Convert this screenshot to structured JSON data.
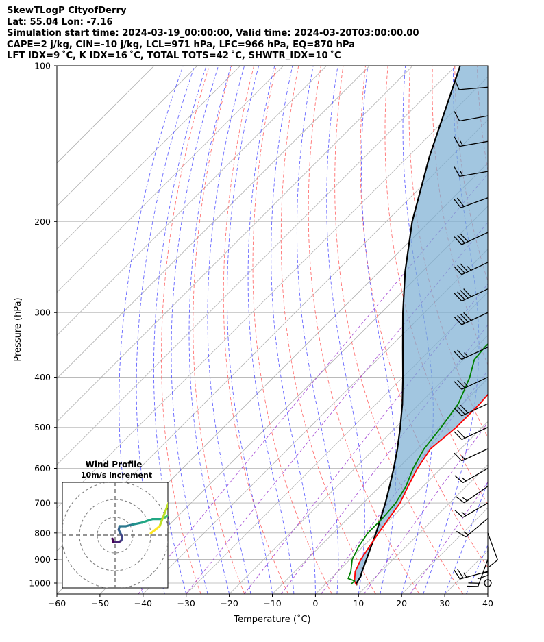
{
  "header": {
    "line1": "SkewTLogP CityofDerry",
    "line2": "Lat: 55.04   Lon: -7.16",
    "line3": "Simulation start time: 2024-03-19_00:00:00, Valid time: 2024-03-20T03:00:00.00",
    "line4": "CAPE=2 j/kg, CIN=-10 j/kg, LCL=971 hPa, LFC=966 hPa, EQ=870 hPa",
    "line5": "LFT IDX=9 ˚C, K IDX=16 ˚C, TOTAL TOTS=42 ˚C, SHWTR_IDX=10 ˚C"
  },
  "chart_data": {
    "type": "skewt",
    "xlabel": "Temperature (˚C)",
    "ylabel": "Pressure (hPa)",
    "xlim": [
      -60,
      40
    ],
    "ylim": [
      1050,
      100
    ],
    "y_scale": "log",
    "x_ticks": [
      -60,
      -50,
      -40,
      -30,
      -20,
      -10,
      0,
      10,
      20,
      30,
      40
    ],
    "x_tick_labels": [
      "−60",
      "−50",
      "−40",
      "−30",
      "−20",
      "−10",
      "0",
      "10",
      "20",
      "30",
      "40"
    ],
    "y_ticks": [
      1000,
      900,
      800,
      700,
      600,
      500,
      400,
      300,
      200,
      100
    ],
    "y_tick_labels": [
      "1000",
      "900",
      "800",
      "700",
      "600",
      "500",
      "400",
      "300",
      "200",
      "100"
    ],
    "grid": true,
    "temperature": {
      "color": "#ff0000",
      "p": [
        1010,
        990,
        950,
        900,
        850,
        800,
        750,
        700,
        650,
        600,
        550,
        500,
        450,
        420,
        400,
        370,
        350,
        330,
        300,
        270,
        250,
        230,
        220,
        210,
        200,
        180,
        170,
        160,
        150,
        140,
        130,
        120,
        110,
        100
      ],
      "t": [
        7.5,
        6,
        4,
        2.5,
        1.5,
        0.5,
        -0.5,
        -1.5,
        -3.5,
        -5.5,
        -7,
        -6,
        -6,
        -6.5,
        -8,
        -9.5,
        -10.5,
        -11.5,
        -12.5,
        -13,
        -13.5,
        -13.5,
        -13,
        -12,
        -10.5,
        -9,
        -7.5,
        -5.5,
        -3.5,
        -1,
        1.5,
        3.5,
        6,
        7.5
      ]
    },
    "dewpoint": {
      "color": "#008000",
      "p": [
        1005,
        990,
        980,
        950,
        900,
        850,
        800,
        750,
        700,
        650,
        600,
        550,
        500,
        450,
        400,
        370,
        350,
        330,
        300,
        270,
        250,
        230,
        210,
        200,
        180,
        170,
        160,
        150,
        140,
        130,
        120,
        110,
        100
      ],
      "t": [
        6,
        6,
        4,
        3,
        0.5,
        -1,
        -2,
        -2,
        -2.5,
        -4,
        -6.5,
        -8.5,
        -9.5,
        -11,
        -14.5,
        -17.5,
        -18,
        -18,
        -17.5,
        -18.5,
        -20.5,
        -23,
        -26.5,
        -28,
        -28.5,
        -28,
        -26.5,
        -25,
        -22.5,
        -20,
        -16.5,
        -14,
        -11
      ]
    },
    "parcel": {
      "color": "#000000",
      "p": [
        1010,
        1000,
        971,
        950,
        900,
        850,
        800,
        750,
        700,
        650,
        600,
        550,
        500,
        450,
        400,
        350,
        300,
        250,
        200,
        150,
        100
      ],
      "t": [
        7.5,
        7.0,
        6.4,
        5.6,
        3.8,
        1.9,
        -0.1,
        -2.4,
        -4.9,
        -7.8,
        -11.0,
        -14.7,
        -19.0,
        -24.0,
        -30.0,
        -37.0,
        -45.0,
        -54.0,
        -64.0,
        -75.0,
        -89.0
      ]
    },
    "wind_barbs": [
      {
        "p": 1000,
        "speed_kt": 0,
        "dir": 0
      },
      {
        "p": 950,
        "speed_kt": 25,
        "dir": 255
      },
      {
        "p": 900,
        "speed_kt": 20,
        "dir": 200
      },
      {
        "p": 850,
        "speed_kt": 15,
        "dir": 180
      },
      {
        "p": 800,
        "speed_kt": 10,
        "dir": 160
      },
      {
        "p": 750,
        "speed_kt": 15,
        "dir": 230
      },
      {
        "p": 700,
        "speed_kt": 15,
        "dir": 240
      },
      {
        "p": 650,
        "speed_kt": 15,
        "dir": 235
      },
      {
        "p": 600,
        "speed_kt": 15,
        "dir": 240
      },
      {
        "p": 550,
        "speed_kt": 15,
        "dir": 245
      },
      {
        "p": 500,
        "speed_kt": 20,
        "dir": 245
      },
      {
        "p": 450,
        "speed_kt": 30,
        "dir": 245
      },
      {
        "p": 400,
        "speed_kt": 25,
        "dir": 245
      },
      {
        "p": 350,
        "speed_kt": 25,
        "dir": 245
      },
      {
        "p": 300,
        "speed_kt": 40,
        "dir": 245
      },
      {
        "p": 270,
        "speed_kt": 40,
        "dir": 245
      },
      {
        "p": 240,
        "speed_kt": 35,
        "dir": 245
      },
      {
        "p": 210,
        "speed_kt": 30,
        "dir": 245
      },
      {
        "p": 180,
        "speed_kt": 20,
        "dir": 250
      },
      {
        "p": 160,
        "speed_kt": 15,
        "dir": 260
      },
      {
        "p": 140,
        "speed_kt": 15,
        "dir": 260
      },
      {
        "p": 125,
        "speed_kt": 10,
        "dir": 260
      },
      {
        "p": 110,
        "speed_kt": 10,
        "dir": 265
      }
    ],
    "hodograph": {
      "title": "Wind Profile",
      "subtitle": "10m/s increment",
      "rings_ms": [
        10,
        20,
        30
      ],
      "u": [
        -1.5,
        -1,
        0,
        2,
        3.5,
        4,
        3,
        2,
        2.5,
        6,
        10,
        15,
        21,
        26,
        30,
        32,
        34,
        34,
        30,
        25,
        20
      ],
      "v": [
        -2,
        -4,
        -4,
        -4,
        -3,
        -1,
        1,
        3,
        5,
        5,
        6,
        7,
        9,
        9,
        11,
        13,
        16,
        18,
        18,
        5,
        1
      ]
    }
  }
}
